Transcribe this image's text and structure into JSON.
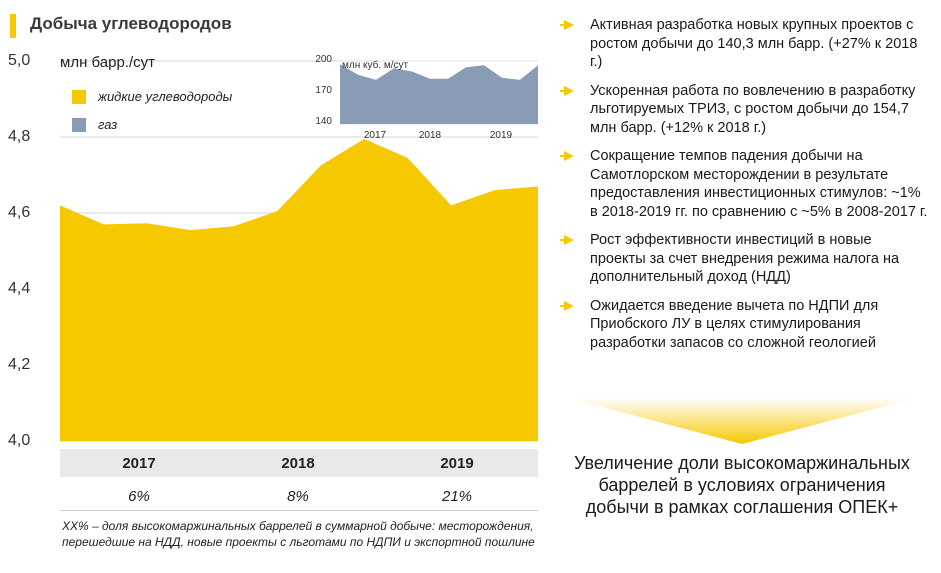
{
  "header": {
    "title": "Добыча углеводородов"
  },
  "chart_data": [
    {
      "type": "area",
      "unit_label": "млн барр./сут",
      "ylim": [
        4.0,
        5.0
      ],
      "y_ticks": [
        "5,0",
        "4,8",
        "4,6",
        "4,4",
        "4,2",
        "4,0"
      ],
      "x_ticks": [
        "2017",
        "2018",
        "2019"
      ],
      "series": [
        {
          "name": "жидкие углеводороды",
          "values": [
            4.62,
            4.57,
            4.573,
            4.555,
            4.565,
            4.605,
            4.725,
            4.795,
            4.745,
            4.62,
            4.66,
            4.67
          ]
        }
      ],
      "shares": [
        "6%",
        "8%",
        "21%"
      ],
      "footnote": "XX% – доля высокомаржинальных баррелей в суммарной добыче: месторождения, перешедшие на НДД, новые проекты с льготами по НДПИ и экспортной пошлине"
    },
    {
      "type": "area",
      "unit_label": "млн куб. м/сут",
      "ylim": [
        140,
        200
      ],
      "y_ticks": [
        "200",
        "170",
        "140"
      ],
      "x_ticks": [
        "2017",
        "2018",
        "2019"
      ],
      "series": [
        {
          "name": "газ",
          "values": [
            197,
            187,
            182,
            193,
            190,
            183,
            183,
            194,
            196,
            184,
            182,
            196
          ]
        }
      ]
    }
  ],
  "colors": {
    "liquids": "#f5c800",
    "gas": "#8a9bb5",
    "accent": "#f5c800"
  },
  "bullets": [
    "Активная разработка новых крупных проектов с ростом добычи до 140,3 млн барр. (+27% к 2018 г.)",
    "Ускоренная работа по вовлечению в разработку льготируемых ТРИЗ, с ростом добычи до 154,7 млн барр. (+12% к 2018 г.)",
    "Сокращение темпов падения добычи на Самотлорском месторождении в результате предоставления инвестиционных стимулов: ~1% в 2018-2019 гг. по сравнению с ~5% в 2008-2017 г.",
    "Рост эффективности инвестиций в новые проекты за счет внедрения режима налога на дополнительный доход (НДД)",
    "Ожидается введение вычета по НДПИ для Приобского ЛУ в целях стимулирования разработки запасов со сложной геологией"
  ],
  "conclusion": "Увеличение доли высокомаржинальных баррелей в условиях ограничения добычи в рамках соглашения ОПЕК+"
}
